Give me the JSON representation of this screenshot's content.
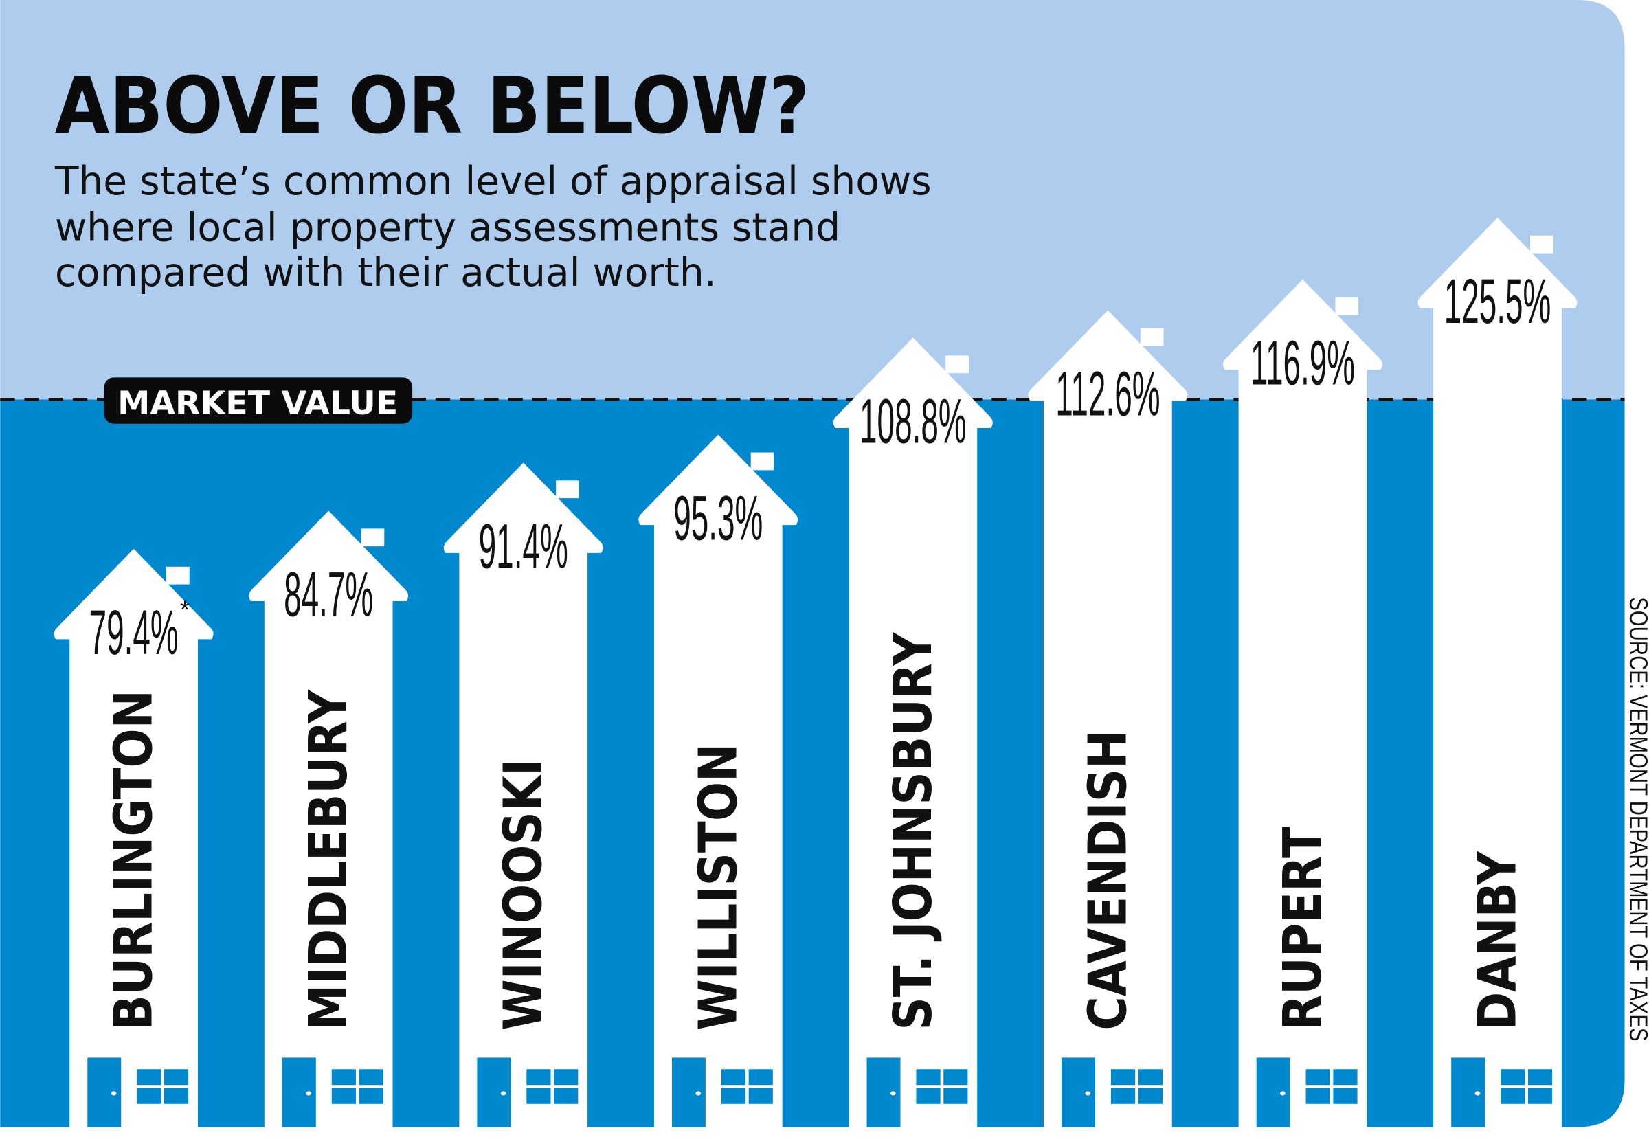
{
  "title": "ABOVE OR BELOW?",
  "subtitle": [
    "The state’s common level of appraisal shows",
    "where local property assessments stand",
    "compared with their actual worth."
  ],
  "market_value_label": "MARKET VALUE",
  "source": "SOURCE: VERMONT DEPARTMENT OF TAXES",
  "colors": {
    "above_background": "#aecdee",
    "below_background": "#0088cf",
    "house": "#ffffff",
    "text": "#111111"
  },
  "chart_data": {
    "type": "bar",
    "title": "ABOVE OR BELOW?",
    "categories": [
      "BURLINGTON",
      "MIDDLEBURY",
      "WINOOSKI",
      "WILLISTON",
      "ST. JOHNSBURY",
      "CAVENDISH",
      "RUPERT",
      "DANBY"
    ],
    "values": [
      79.4,
      84.7,
      91.4,
      95.3,
      108.8,
      112.6,
      116.9,
      125.5
    ],
    "value_labels": [
      "79.4%",
      "84.7%",
      "91.4%",
      "95.3%",
      "108.8%",
      "112.6%",
      "116.9%",
      "125.5%"
    ],
    "footnote_markers": [
      "*",
      "",
      "",
      "",
      "",
      "",
      "",
      ""
    ],
    "reference_line": {
      "label": "MARKET VALUE"
    },
    "unit": "%",
    "grid": false,
    "legend": "none"
  }
}
